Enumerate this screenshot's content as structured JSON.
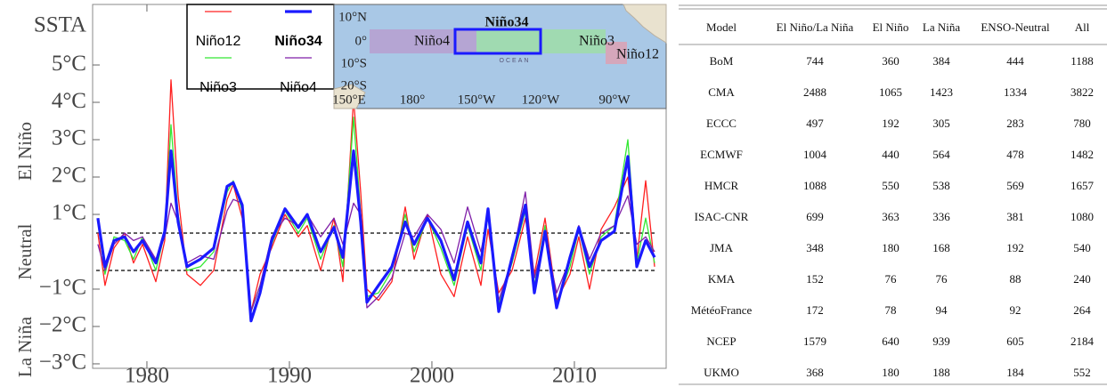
{
  "chart_data": {
    "type": "line",
    "y_axis_label": "SSTA",
    "band_labels": [
      "El Niño",
      "Neutral",
      "La Niña"
    ],
    "legend": "top-left",
    "xlim": [
      1976.19,
      2016.44
    ],
    "ylim": [
      -3.12,
      6.62
    ],
    "xticks": [
      1980,
      1990,
      2000,
      2010
    ],
    "yticks": [
      {
        "value": 5,
        "label": "5°C"
      },
      {
        "value": 4,
        "label": "4°C"
      },
      {
        "value": 3,
        "label": "3°C"
      },
      {
        "value": 2,
        "label": "2°C"
      },
      {
        "value": 1,
        "label": "1°C"
      },
      {
        "value": -1,
        "label": "−1°C"
      },
      {
        "value": -2,
        "label": "−2°C"
      },
      {
        "value": -3,
        "label": "−3°C"
      }
    ],
    "reference_lines": [
      0.5,
      -0.5
    ],
    "x": [
      1976.56,
      1977.06,
      1977.69,
      1978.44,
      1979.06,
      1979.69,
      1980.63,
      1981.25,
      1981.69,
      1982.19,
      1982.81,
      1983.75,
      1984.69,
      1985.63,
      1986.06,
      1986.69,
      1987.31,
      1987.94,
      1988.75,
      1989.69,
      1990.63,
      1991.25,
      1992.19,
      1993.13,
      1993.75,
      1994.5,
      1995.0,
      1995.44,
      1996.25,
      1997.19,
      1998.13,
      1998.75,
      1999.69,
      2000.63,
      2001.56,
      2002.5,
      2003.44,
      2003.94,
      2004.69,
      2005.63,
      2006.56,
      2007.19,
      2007.94,
      2008.75,
      2009.69,
      2010.31,
      2011.06,
      2011.88,
      2012.81,
      2013.75,
      2014.38,
      2015.0,
      2015.63
    ],
    "series": [
      {
        "name": "Niño12",
        "color": "#ff2020",
        "line_width": 1.3,
        "values": [
          0.5,
          -0.9,
          0.1,
          0.5,
          -0.3,
          0.2,
          -0.8,
          0.3,
          4.6,
          1.5,
          -0.6,
          -0.9,
          -0.5,
          1.4,
          1.8,
          0.9,
          -1.6,
          -0.6,
          0.1,
          1.0,
          0.4,
          0.7,
          -0.5,
          0.9,
          -0.8,
          4.1,
          1.6,
          -1.0,
          -1.3,
          -0.8,
          1.2,
          -0.2,
          1.0,
          -0.6,
          -1.2,
          0.4,
          -0.9,
          0.6,
          -1.1,
          -0.5,
          0.9,
          -0.6,
          0.9,
          -1.3,
          -0.6,
          0.4,
          -1.0,
          0.6,
          1.2,
          2.0,
          -0.2,
          1.9,
          -0.4
        ]
      },
      {
        "name": "Niño34",
        "color": "#1a1aff",
        "line_width": 3.2,
        "values": [
          0.9,
          -0.4,
          0.3,
          0.4,
          0,
          0.3,
          -0.3,
          0.55,
          2.7,
          0.8,
          -0.4,
          -0.2,
          0.1,
          1.75,
          1.85,
          1.25,
          -1.85,
          -1.1,
          0.3,
          1.15,
          0.65,
          1.0,
          0,
          0.65,
          -0.15,
          2.7,
          0.8,
          -1.35,
          -0.9,
          -0.4,
          0.8,
          0.2,
          0.9,
          0.3,
          -0.75,
          0.8,
          -0.3,
          1.15,
          -1.6,
          -0.15,
          1.25,
          -1.1,
          0.55,
          -1.5,
          -0.15,
          0.65,
          -0.4,
          0.3,
          0.55,
          2.55,
          -0.4,
          0.3,
          -0.15
        ]
      },
      {
        "name": "Niño3",
        "color": "#33e833",
        "line_width": 1.3,
        "values": [
          0.8,
          -0.6,
          0.4,
          0.3,
          -0.2,
          0.4,
          -0.5,
          0.5,
          3.4,
          1.0,
          -0.5,
          -0.4,
          0.0,
          1.6,
          1.9,
          1.1,
          -1.6,
          -0.9,
          0.2,
          1.1,
          0.5,
          0.9,
          -0.2,
          0.7,
          -0.4,
          3.6,
          1.0,
          -1.2,
          -1.1,
          -0.5,
          1.0,
          0.0,
          0.9,
          0.1,
          -0.9,
          0.7,
          -0.5,
          1.0,
          -1.4,
          -0.3,
          1.1,
          -0.9,
          0.7,
          -1.4,
          -0.4,
          0.6,
          -0.6,
          0.4,
          0.7,
          3.0,
          -0.3,
          0.9,
          -0.3
        ]
      },
      {
        "name": "Niño4",
        "color": "#7f1fa8",
        "line_width": 1.3,
        "values": [
          0.2,
          -0.5,
          0.2,
          0.5,
          0.3,
          0.4,
          -0.2,
          0.4,
          1.3,
          0.8,
          -0.3,
          -0.1,
          -0.2,
          1.1,
          1.4,
          1.3,
          -1.6,
          -0.9,
          0.4,
          0.9,
          0.7,
          1.0,
          0.4,
          0.9,
          0.2,
          1.3,
          1.0,
          -1.5,
          -1.2,
          -0.7,
          0.5,
          0.4,
          1.0,
          0.6,
          -0.3,
          1.2,
          0.0,
          1.0,
          -1.3,
          -0.2,
          1.6,
          -0.7,
          0.4,
          -1.1,
          -0.2,
          0.7,
          -0.2,
          0.5,
          0.7,
          1.5,
          0.2,
          0.4,
          0.0
        ]
      }
    ]
  },
  "inset_map": {
    "lat_labels": [
      "10°N",
      "0°",
      "10°S",
      "20°S"
    ],
    "lon_labels": [
      "150°E",
      "180°",
      "150°W",
      "120°W",
      "90°W"
    ],
    "regions": [
      "Niño4",
      "Niño34",
      "Niño3",
      "Niño12"
    ],
    "ocean_label": "OCEAN"
  },
  "table": {
    "header": [
      "Model",
      "El Niño/La Niña",
      "El Niño",
      "La Niña",
      "ENSO-Neutral",
      "All"
    ],
    "rows": [
      [
        "BoM",
        "744",
        "360",
        "384",
        "444",
        "1188"
      ],
      [
        "CMA",
        "2488",
        "1065",
        "1423",
        "1334",
        "3822"
      ],
      [
        "ECCC",
        "497",
        "192",
        "305",
        "283",
        "780"
      ],
      [
        "ECMWF",
        "1004",
        "440",
        "564",
        "478",
        "1482"
      ],
      [
        "HMCR",
        "1088",
        "550",
        "538",
        "569",
        "1657"
      ],
      [
        "ISAC-CNR",
        "699",
        "363",
        "336",
        "381",
        "1080"
      ],
      [
        "JMA",
        "348",
        "180",
        "168",
        "192",
        "540"
      ],
      [
        "KMA",
        "152",
        "76",
        "76",
        "88",
        "240"
      ],
      [
        "MétéoFrance",
        "172",
        "78",
        "94",
        "92",
        "264"
      ],
      [
        "NCEP",
        "1579",
        "640",
        "939",
        "605",
        "2184"
      ],
      [
        "UKMO",
        "368",
        "180",
        "188",
        "184",
        "552"
      ]
    ]
  }
}
